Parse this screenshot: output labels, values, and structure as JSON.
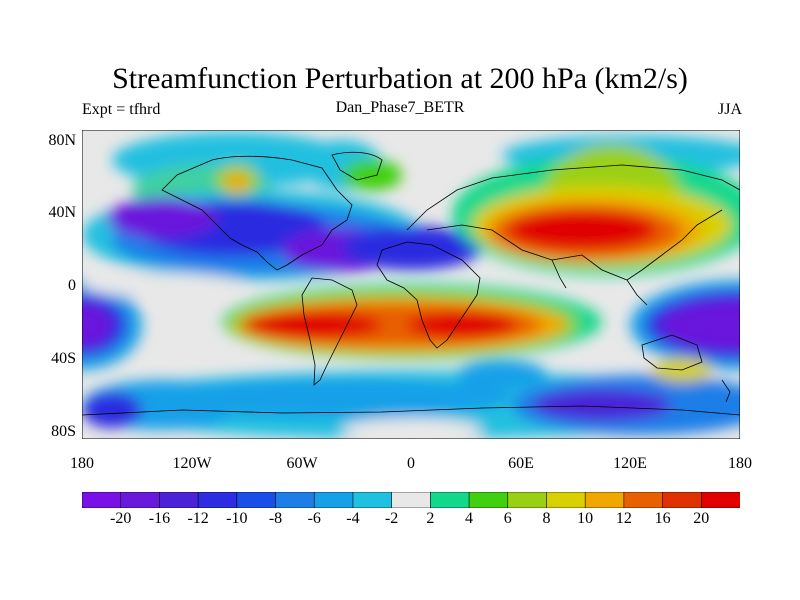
{
  "title": "Streamfunction Perturbation at 200 hPa (km2/s)",
  "left_subtitle": "Expt = tfhrd",
  "center_subtitle": "Dan_Phase7_BETR",
  "right_subtitle": "JJA",
  "lat_labels": [
    "80N",
    "40N",
    "0",
    "40S",
    "80S"
  ],
  "lon_labels": [
    "180",
    "120W",
    "60W",
    "0",
    "60E",
    "120E",
    "180"
  ],
  "colorbar": {
    "colors": [
      "#7a10e6",
      "#6a18dc",
      "#4a22d8",
      "#2c2ce0",
      "#1a4ee8",
      "#1e7ee8",
      "#16a0e8",
      "#20c0e0",
      "#e8e8e8",
      "#12d88c",
      "#40d010",
      "#9ad014",
      "#d8d000",
      "#f0a800",
      "#e86000",
      "#e03000",
      "#e00000"
    ],
    "labels": [
      "-20",
      "-16",
      "-12",
      "-10",
      "-8",
      "-6",
      "-4",
      "-2",
      "2",
      "4",
      "6",
      "8",
      "10",
      "12",
      "16",
      "20"
    ]
  }
}
